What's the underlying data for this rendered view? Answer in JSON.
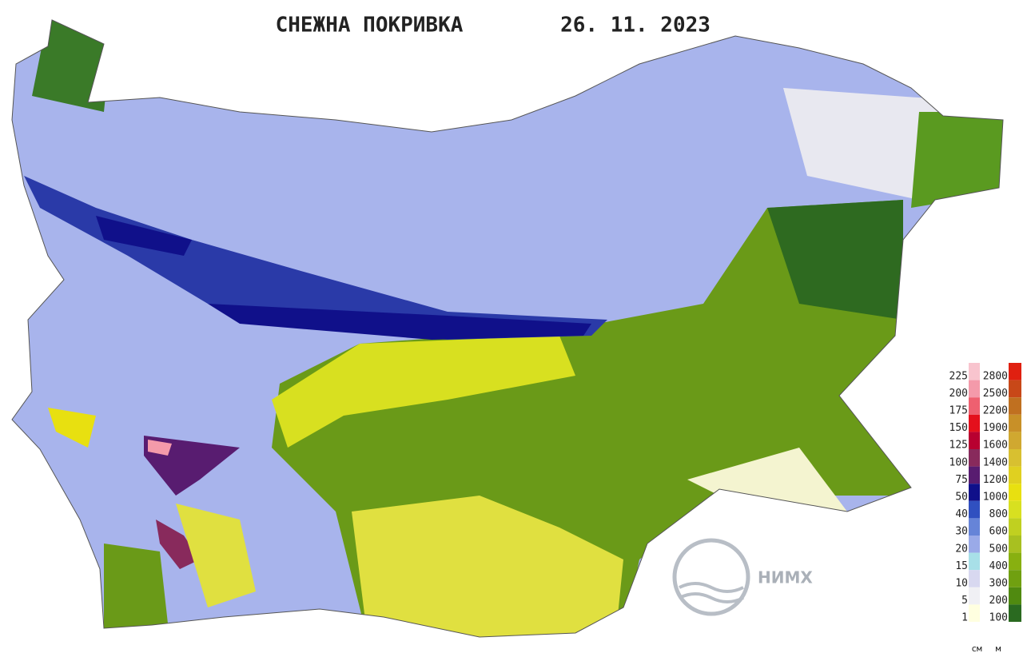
{
  "header": {
    "title": "СНЕЖНА ПОКРИВКА",
    "date": "26. 11. 2023"
  },
  "legend": {
    "snow": {
      "unit": "см",
      "items": [
        {
          "value": 225,
          "color": "#f8c4ce"
        },
        {
          "value": 200,
          "color": "#f49aaa"
        },
        {
          "value": 175,
          "color": "#ee6070"
        },
        {
          "value": 150,
          "color": "#e4101c"
        },
        {
          "value": 125,
          "color": "#b80030"
        },
        {
          "value": 100,
          "color": "#882a5c"
        },
        {
          "value": 75,
          "color": "#581c70"
        },
        {
          "value": 50,
          "color": "#10108a"
        },
        {
          "value": 40,
          "color": "#3050c0"
        },
        {
          "value": 30,
          "color": "#6684d8"
        },
        {
          "value": 20,
          "color": "#9aaae8"
        },
        {
          "value": 15,
          "color": "#a8e0e8"
        },
        {
          "value": 10,
          "color": "#d8d8f0"
        },
        {
          "value": 5,
          "color": "#f0f0f4"
        },
        {
          "value": 1,
          "color": "#ffffe0"
        }
      ]
    },
    "elevation": {
      "unit": "м",
      "items": [
        {
          "value": 2800,
          "color": "#e02010"
        },
        {
          "value": 2500,
          "color": "#c84818"
        },
        {
          "value": 2200,
          "color": "#c07020"
        },
        {
          "value": 1900,
          "color": "#c89028"
        },
        {
          "value": 1600,
          "color": "#d0a830"
        },
        {
          "value": 1400,
          "color": "#d8c030"
        },
        {
          "value": 1200,
          "color": "#e0d020"
        },
        {
          "value": 1000,
          "color": "#e8e010"
        },
        {
          "value": 800,
          "color": "#d8e020"
        },
        {
          "value": 600,
          "color": "#c0d020"
        },
        {
          "value": 500,
          "color": "#a8c020"
        },
        {
          "value": 400,
          "color": "#88b010"
        },
        {
          "value": 300,
          "color": "#70a010"
        },
        {
          "value": 200,
          "color": "#508a10"
        },
        {
          "value": 100,
          "color": "#2a6a20"
        }
      ]
    }
  },
  "logo": {
    "text": "НИМХ"
  }
}
